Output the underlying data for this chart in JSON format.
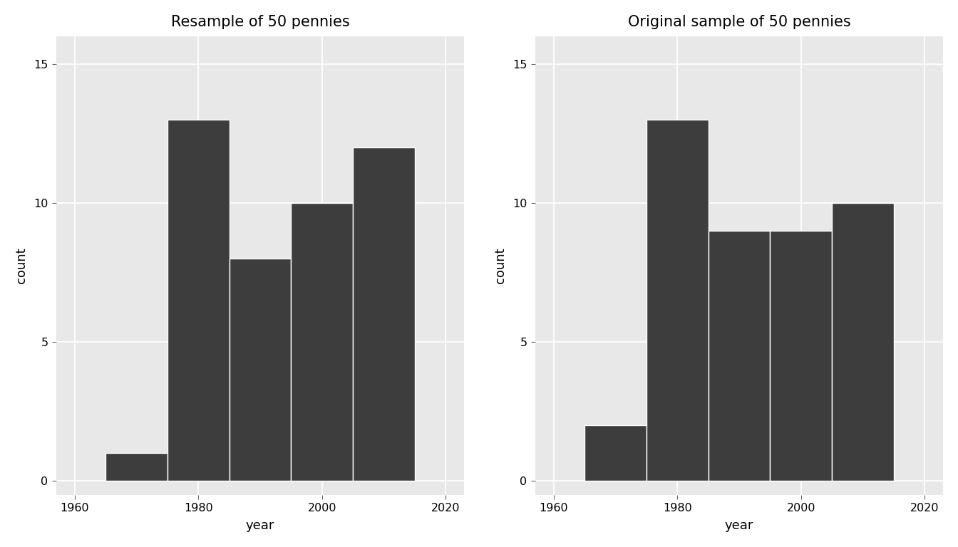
{
  "left_title": "Resample of 50 pennies",
  "right_title": "Original sample of 50 pennies",
  "xlabel": "year",
  "ylabel": "count",
  "bar_color": "#3d3d3d",
  "panel_bg": "#e8e8e8",
  "fig_bg": "#ffffff",
  "grid_color": "#ffffff",
  "ylim": [
    -0.5,
    16
  ],
  "yticks": [
    0,
    5,
    10,
    15
  ],
  "xlim": [
    1957,
    2023
  ],
  "xticks": [
    1960,
    1980,
    2000,
    2020
  ],
  "left_bins": [
    1965,
    1975,
    1985,
    1995,
    2005,
    2015
  ],
  "left_counts": [
    1,
    13,
    8,
    10,
    12
  ],
  "right_bins": [
    1965,
    1975,
    1985,
    1995,
    2005,
    2015
  ],
  "right_counts": [
    2,
    13,
    9,
    9,
    10
  ],
  "title_fontsize": 15,
  "axis_label_fontsize": 13,
  "tick_fontsize": 11.5
}
